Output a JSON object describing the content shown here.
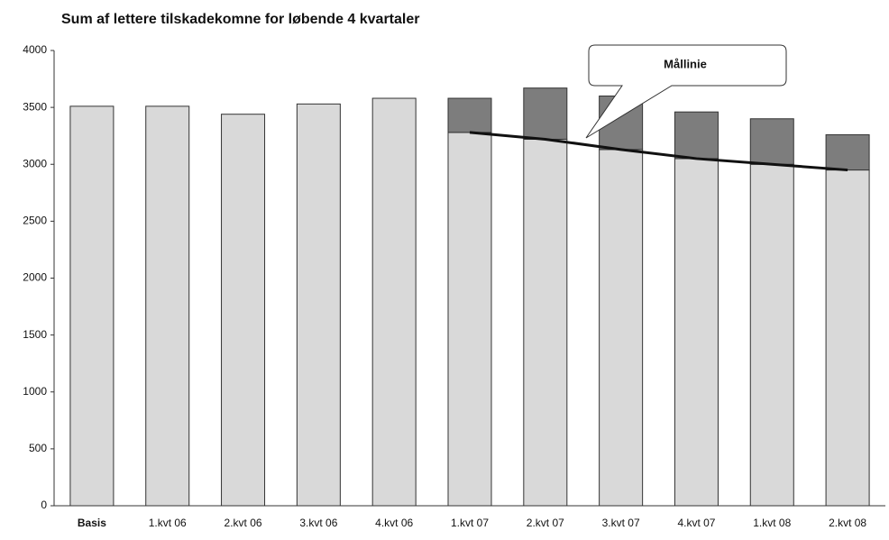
{
  "chart_data": {
    "type": "bar",
    "stacked": true,
    "title": "Sum af lettere tilskadekomne for løbende 4 kvartaler",
    "categories": [
      "Basis",
      "1.kvt 06",
      "2.kvt 06",
      "3.kvt 06",
      "4.kvt 06",
      "1.kvt 07",
      "2.kvt 07",
      "3.kvt 07",
      "4.kvt 07",
      "1.kvt 08",
      "2.kvt 08"
    ],
    "series": [
      {
        "color": "#d9d9d9",
        "values": [
          3510,
          3510,
          3440,
          3530,
          3580,
          3280,
          3220,
          3130,
          3050,
          3000,
          2950
        ]
      },
      {
        "color": "#7d7d7d",
        "values": [
          null,
          null,
          null,
          null,
          null,
          300,
          450,
          470,
          410,
          400,
          310
        ]
      },
      {
        "name": "Mållinie",
        "type": "line",
        "color": "#111111",
        "values": [
          null,
          null,
          null,
          null,
          null,
          3280,
          3220,
          3130,
          3050,
          3000,
          2950
        ]
      }
    ],
    "ylim": [
      0,
      4000
    ],
    "yticks": [
      0,
      500,
      1000,
      1500,
      2000,
      2500,
      3000,
      3500,
      4000
    ],
    "grid": false
  }
}
